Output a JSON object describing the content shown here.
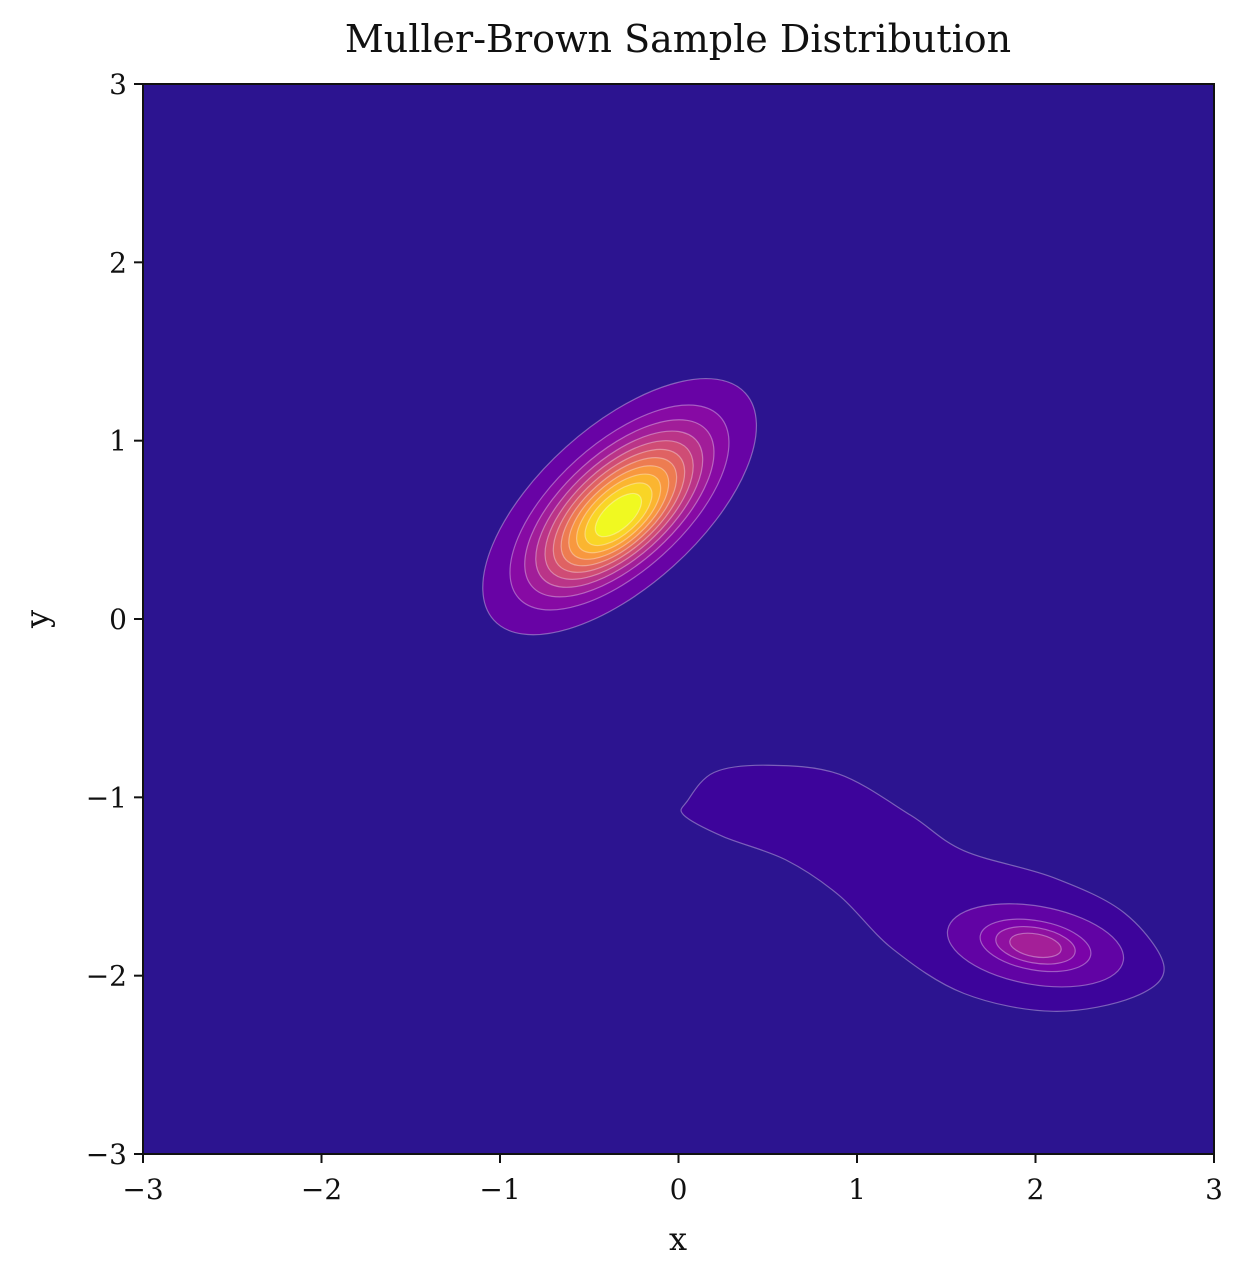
{
  "chart_data": {
    "type": "contour",
    "title": "Muller-Brown Sample Distribution",
    "xlabel": "x",
    "ylabel": "y",
    "xlim": [
      -3,
      3
    ],
    "ylim": [
      -3,
      3
    ],
    "xticks": [
      -3,
      -2,
      -1,
      0,
      1,
      2,
      3
    ],
    "yticks": [
      -3,
      -2,
      -1,
      0,
      1,
      2,
      3
    ],
    "xtick_labels": [
      "−3",
      "−2",
      "−1",
      "0",
      "1",
      "2",
      "3"
    ],
    "ytick_labels": [
      "−3",
      "−2",
      "−1",
      "0",
      "1",
      "2",
      "3"
    ],
    "grid": false,
    "colormap": "plasma",
    "background_color": "#2c1490",
    "contour_line_color": "#ffffff",
    "levels": 11,
    "modes": [
      {
        "center": [
          -0.33,
          0.63
        ],
        "peak_density": 1.0,
        "orientation_deg": 42,
        "semi_axes": [
          0.95,
          0.45
        ]
      },
      {
        "center": [
          2.0,
          -1.83
        ],
        "peak_density": 0.28,
        "orientation_deg": -10,
        "semi_axes": [
          0.5,
          0.22
        ]
      }
    ],
    "low_density_bridge": {
      "from": [
        0.1,
        -1.0
      ],
      "to": [
        2.6,
        -2.0
      ],
      "level": 1
    }
  }
}
